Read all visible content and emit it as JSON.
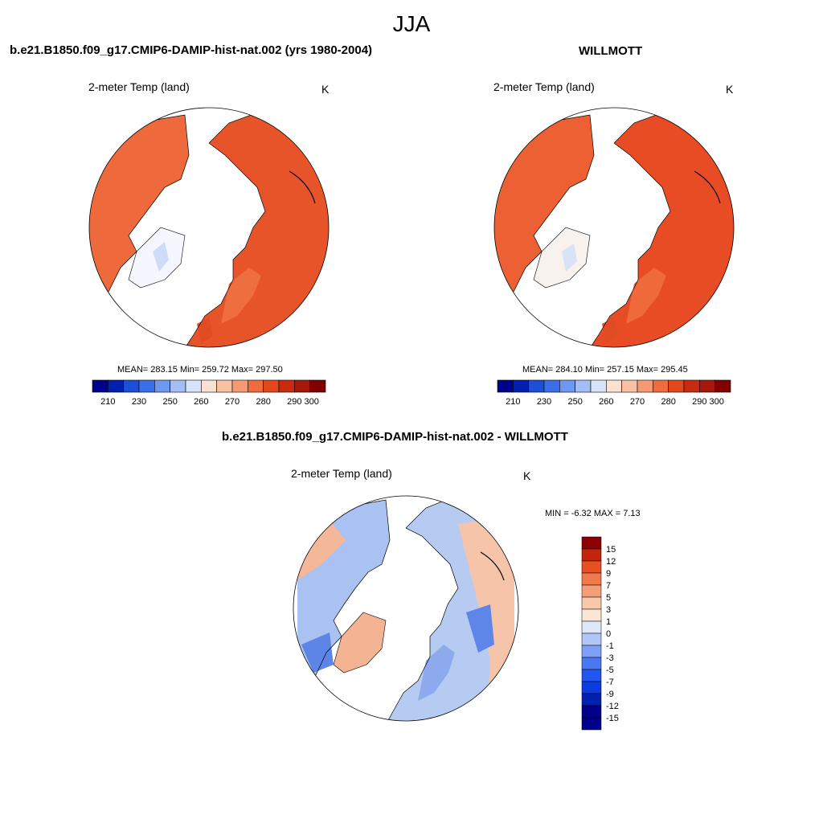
{
  "page_title": "JJA",
  "panels": [
    {
      "title": "b.e21.B1850.f09_g17.CMIP6-DAMIP-hist-nat.002 (yrs 1980-2004)",
      "variable": "2-meter Temp (land)",
      "units": "K",
      "stats": "MEAN= 283.15  Min= 259.72  Max= 297.50"
    },
    {
      "title": "WILLMOTT",
      "variable": "2-meter Temp (land)",
      "units": "K",
      "stats": "MEAN= 284.10  Min= 257.15  Max= 295.45"
    },
    {
      "title": "b.e21.B1850.f09_g17.CMIP6-DAMIP-hist-nat.002 - WILLMOTT",
      "variable": "2-meter Temp (land)",
      "units": "K",
      "stats": "MIN =  -6.32 MAX =   7.13"
    }
  ],
  "colorbar_abs": {
    "colors": [
      "#00008b",
      "#0020b0",
      "#1a4fd6",
      "#3a6fe8",
      "#6f97f0",
      "#a3bdf5",
      "#d7e3fa",
      "#fbe2d0",
      "#f8c1a3",
      "#f59a72",
      "#ef6c3f",
      "#e5471c",
      "#c92b10",
      "#a8180a",
      "#800000"
    ],
    "labels": [
      "210",
      "230",
      "250",
      "260",
      "270",
      "280",
      "290",
      "300"
    ]
  },
  "colorbar_diff": {
    "colors": [
      "#00008b",
      "#0020b0",
      "#0a3be0",
      "#2256f0",
      "#4a78f2",
      "#7e9ff4",
      "#b0c6f7",
      "#dde8fb",
      "#fbe6d6",
      "#f8c8aa",
      "#f59e76",
      "#f07a4c",
      "#e84f22",
      "#c2250c",
      "#8b0000"
    ],
    "labels": [
      "15",
      "12",
      "9",
      "7",
      "5",
      "3",
      "1",
      "0",
      "-1",
      "-3",
      "-5",
      "-7",
      "-9",
      "-12",
      "-15"
    ]
  },
  "map_fill": {
    "model": "#ee5a30",
    "obs": "#ea5028",
    "diff_land": "#a9c2f1"
  }
}
